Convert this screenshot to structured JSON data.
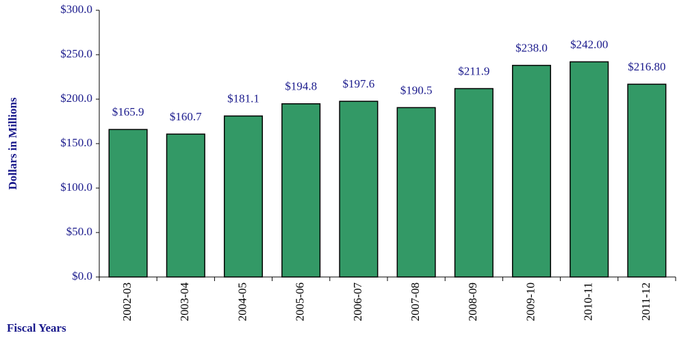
{
  "chart_data": {
    "type": "bar",
    "y_label": "Dollars in Millions",
    "x_label": "Fiscal Years",
    "categories": [
      "2002-03",
      "2003-04",
      "2004-05",
      "2005-06",
      "2006-07",
      "2007-08",
      "2008-09",
      "2009-10",
      "2010-11",
      "2011-12"
    ],
    "values": [
      165.9,
      160.7,
      181.1,
      194.8,
      197.6,
      190.5,
      211.9,
      238.0,
      242.0,
      216.8
    ],
    "value_labels": [
      "$165.9",
      "$160.7",
      "$181.1",
      "$194.8",
      "$197.6",
      "$190.5",
      "$211.9",
      "$238.0",
      "$242.00",
      "$216.80"
    ],
    "color": "#339966",
    "ylim": [
      0,
      300
    ],
    "yticks": [
      {
        "value": 0,
        "label": "$0.0"
      },
      {
        "value": 50,
        "label": "$50.0"
      },
      {
        "value": 100,
        "label": "$100.0"
      },
      {
        "value": 150,
        "label": "$150.0"
      },
      {
        "value": 200,
        "label": "$200.0"
      },
      {
        "value": 250,
        "label": "$250.0"
      },
      {
        "value": 300,
        "label": "$300.0"
      }
    ],
    "grid": false
  }
}
